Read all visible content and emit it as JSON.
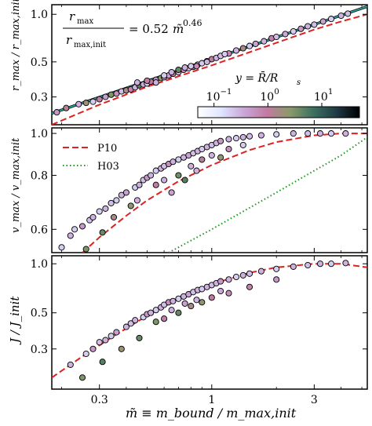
{
  "chart_data": [
    {
      "type": "scatter",
      "panel": "top",
      "ylabel": "r_max / r_max,init",
      "ylabel_text": "r",
      "xscale": "log",
      "yscale": "log",
      "xlim": [
        0.18,
        5.3
      ],
      "ylim": [
        0.2,
        1.15
      ],
      "yticks": [
        0.3,
        0.5,
        1.0
      ],
      "ytick_labels": [
        "0.3",
        "0.5",
        "1.0"
      ],
      "annotation": {
        "lhs_num": "r",
        "lhs_num_sub": "max",
        "lhs_den": "r",
        "lhs_den_sub": "max,init",
        "rhs": "= 0.52",
        "rhs_var": "m̃",
        "rhs_exp": "0.46"
      },
      "fit": {
        "name": "0.52 m̃^0.46",
        "coef": 0.52,
        "exponent": 0.46,
        "color": "#2aa198"
      },
      "series": [
        {
          "name": "P10",
          "style": "dashed",
          "color": "#dd2222",
          "x": [
            0.18,
            0.3,
            0.5,
            1.0,
            2.0,
            3.0,
            4.0,
            5.3
          ],
          "y": [
            0.2,
            0.268,
            0.348,
            0.475,
            0.66,
            0.8,
            0.9,
            1.0
          ]
        }
      ],
      "points": [
        [
          0.19,
          0.24,
          0.5
        ],
        [
          0.21,
          0.255,
          1.2
        ],
        [
          0.24,
          0.27,
          0.3
        ],
        [
          0.26,
          0.275,
          2.0
        ],
        [
          0.28,
          0.28,
          0.2
        ],
        [
          0.3,
          0.29,
          1.0
        ],
        [
          0.32,
          0.3,
          0.4
        ],
        [
          0.34,
          0.31,
          3.0
        ],
        [
          0.36,
          0.315,
          0.6
        ],
        [
          0.38,
          0.325,
          0.25
        ],
        [
          0.4,
          0.33,
          1.5
        ],
        [
          0.42,
          0.335,
          0.8
        ],
        [
          0.44,
          0.345,
          0.3
        ],
        [
          0.46,
          0.355,
          5.0
        ],
        [
          0.48,
          0.36,
          0.35
        ],
        [
          0.5,
          0.365,
          0.2
        ],
        [
          0.52,
          0.375,
          1.0
        ],
        [
          0.55,
          0.385,
          0.5
        ],
        [
          0.58,
          0.395,
          2.5
        ],
        [
          0.6,
          0.4,
          0.3
        ],
        [
          0.63,
          0.41,
          0.4
        ],
        [
          0.66,
          0.42,
          1.2
        ],
        [
          0.7,
          0.43,
          0.25
        ],
        [
          0.74,
          0.445,
          0.7
        ],
        [
          0.78,
          0.455,
          0.3
        ],
        [
          0.82,
          0.465,
          2.0
        ],
        [
          0.86,
          0.48,
          0.4
        ],
        [
          0.9,
          0.49,
          0.2
        ],
        [
          0.95,
          0.505,
          0.5
        ],
        [
          1.0,
          0.52,
          1.0
        ],
        [
          1.05,
          0.53,
          0.3
        ],
        [
          1.1,
          0.545,
          0.25
        ],
        [
          1.2,
          0.565,
          0.6
        ],
        [
          1.3,
          0.59,
          0.3
        ],
        [
          1.4,
          0.61,
          1.5
        ],
        [
          1.5,
          0.63,
          0.2
        ],
        [
          1.6,
          0.65,
          0.4
        ],
        [
          1.75,
          0.675,
          0.3
        ],
        [
          1.9,
          0.705,
          0.8
        ],
        [
          2.0,
          0.72,
          0.25
        ],
        [
          2.2,
          0.75,
          0.35
        ],
        [
          2.4,
          0.78,
          0.2
        ],
        [
          2.6,
          0.81,
          0.5
        ],
        [
          2.8,
          0.84,
          0.3
        ],
        [
          3.0,
          0.86,
          0.25
        ],
        [
          3.3,
          0.9,
          0.4
        ],
        [
          3.6,
          0.935,
          0.2
        ],
        [
          4.0,
          0.98,
          0.3
        ],
        [
          4.3,
          1.01,
          0.25
        ],
        [
          0.45,
          0.37,
          0.3
        ],
        [
          0.5,
          0.38,
          0.9
        ],
        [
          0.55,
          0.37,
          0.3
        ],
        [
          0.6,
          0.41,
          0.2
        ],
        [
          0.65,
          0.43,
          0.3
        ],
        [
          0.7,
          0.445,
          4.0
        ],
        [
          0.75,
          0.46,
          0.3
        ],
        [
          0.8,
          0.47,
          0.2
        ],
        [
          0.85,
          0.47,
          0.6
        ],
        [
          0.95,
          0.5,
          0.3
        ],
        [
          1.15,
          0.56,
          0.2
        ]
      ],
      "colorbar": {
        "label": "y = R̄/R",
        "label_sub": "s",
        "scale": "log",
        "range": [
          0.05,
          50
        ],
        "ticks": [
          0.1,
          1,
          10
        ],
        "tick_labels": [
          "10",
          "10",
          "10"
        ],
        "tick_exps": [
          "−1",
          "0",
          "1"
        ],
        "stops": [
          "#ffffff",
          "#dfe6ff",
          "#c9a6d8",
          "#c27aa0",
          "#8a9a6a",
          "#3c7060",
          "#1f3a45",
          "#000000"
        ]
      }
    },
    {
      "type": "scatter",
      "panel": "middle",
      "ylabel": "v_max / v_max,init",
      "ylabel_text": "v",
      "xscale": "log",
      "yscale": "log",
      "xlim": [
        0.18,
        5.3
      ],
      "ylim": [
        0.53,
        1.03
      ],
      "yticks": [
        0.6,
        0.8,
        1.0
      ],
      "ytick_labels": [
        "0.6",
        "0.8",
        "1.0"
      ],
      "legend": {
        "position": "upper-left",
        "entries": [
          "P10",
          "H03"
        ]
      },
      "series": [
        {
          "name": "P10",
          "style": "dashed",
          "color": "#dd2222",
          "x": [
            0.25,
            0.3,
            0.4,
            0.5,
            0.7,
            1.0,
            1.5,
            2.0,
            3.0,
            4.0,
            5.3
          ],
          "y": [
            0.53,
            0.575,
            0.645,
            0.7,
            0.775,
            0.845,
            0.915,
            0.955,
            0.99,
            1.0,
            1.0
          ]
        },
        {
          "name": "H03",
          "style": "dotted",
          "color": "#1a9a1a",
          "x": [
            0.63,
            1.0,
            2.0,
            3.0,
            4.0,
            5.3
          ],
          "y": [
            0.53,
            0.6,
            0.73,
            0.82,
            0.89,
            0.98
          ]
        }
      ],
      "points": [
        [
          0.2,
          0.545,
          0.2
        ],
        [
          0.22,
          0.58,
          0.3
        ],
        [
          0.23,
          0.6,
          0.2
        ],
        [
          0.25,
          0.61,
          0.5
        ],
        [
          0.26,
          0.54,
          3.0
        ],
        [
          0.27,
          0.63,
          0.25
        ],
        [
          0.28,
          0.64,
          0.3
        ],
        [
          0.3,
          0.66,
          0.2
        ],
        [
          0.31,
          0.59,
          4.0
        ],
        [
          0.32,
          0.67,
          0.3
        ],
        [
          0.34,
          0.69,
          0.25
        ],
        [
          0.35,
          0.64,
          1.5
        ],
        [
          0.36,
          0.7,
          0.2
        ],
        [
          0.38,
          0.72,
          0.3
        ],
        [
          0.4,
          0.73,
          0.4
        ],
        [
          0.42,
          0.68,
          2.5
        ],
        [
          0.44,
          0.75,
          0.2
        ],
        [
          0.46,
          0.76,
          0.3
        ],
        [
          0.48,
          0.78,
          0.25
        ],
        [
          0.5,
          0.79,
          0.5
        ],
        [
          0.52,
          0.8,
          0.3
        ],
        [
          0.55,
          0.82,
          0.2
        ],
        [
          0.58,
          0.83,
          0.3
        ],
        [
          0.6,
          0.84,
          0.25
        ],
        [
          0.63,
          0.85,
          0.6
        ],
        [
          0.66,
          0.86,
          0.3
        ],
        [
          0.7,
          0.87,
          0.2
        ],
        [
          0.74,
          0.88,
          0.3
        ],
        [
          0.78,
          0.89,
          0.4
        ],
        [
          0.82,
          0.9,
          0.25
        ],
        [
          0.86,
          0.91,
          0.3
        ],
        [
          0.9,
          0.92,
          0.2
        ],
        [
          0.95,
          0.93,
          0.3
        ],
        [
          1.0,
          0.94,
          0.25
        ],
        [
          1.05,
          0.95,
          0.3
        ],
        [
          1.1,
          0.96,
          0.5
        ],
        [
          1.2,
          0.97,
          0.3
        ],
        [
          1.3,
          0.975,
          0.2
        ],
        [
          1.4,
          0.98,
          0.3
        ],
        [
          1.5,
          0.985,
          0.25
        ],
        [
          1.7,
          0.99,
          0.3
        ],
        [
          2.0,
          0.995,
          0.2
        ],
        [
          2.4,
          1.0,
          0.3
        ],
        [
          2.8,
          1.0,
          0.25
        ],
        [
          3.2,
          1.0,
          0.3
        ],
        [
          3.6,
          1.0,
          0.2
        ],
        [
          4.2,
          1.0,
          0.3
        ],
        [
          0.45,
          0.7,
          0.3
        ],
        [
          0.55,
          0.76,
          0.9
        ],
        [
          0.6,
          0.78,
          0.3
        ],
        [
          0.7,
          0.8,
          3.5
        ],
        [
          0.8,
          0.84,
          0.3
        ],
        [
          0.9,
          0.87,
          1.2
        ],
        [
          1.0,
          0.89,
          0.3
        ],
        [
          1.2,
          0.92,
          0.6
        ],
        [
          1.4,
          0.94,
          0.2
        ],
        [
          0.65,
          0.73,
          0.4
        ],
        [
          0.75,
          0.78,
          5.0
        ],
        [
          0.85,
          0.82,
          0.3
        ],
        [
          1.1,
          0.88,
          2.0
        ]
      ]
    },
    {
      "type": "scatter",
      "panel": "bottom",
      "ylabel": "J / J_init",
      "ylabel_text": "J",
      "xlabel": "m̃ ≡ m_bound / m_max,init",
      "xscale": "log",
      "yscale": "log",
      "xlim": [
        0.18,
        5.3
      ],
      "ylim": [
        0.17,
        1.12
      ],
      "xticks": [
        0.3,
        1,
        3
      ],
      "xtick_labels": [
        "0.3",
        "1",
        "3"
      ],
      "yticks": [
        0.3,
        0.5,
        1.0
      ],
      "ytick_labels": [
        "0.3",
        "0.5",
        "1.0"
      ],
      "series": [
        {
          "name": "P10",
          "style": "dashed",
          "color": "#dd2222",
          "x": [
            0.18,
            0.25,
            0.35,
            0.5,
            0.7,
            1.0,
            1.5,
            2.0,
            3.0,
            4.0,
            5.3
          ],
          "y": [
            0.2,
            0.27,
            0.36,
            0.48,
            0.61,
            0.75,
            0.88,
            0.95,
            1.0,
            1.0,
            0.95
          ]
        }
      ],
      "points": [
        [
          0.22,
          0.24,
          0.3
        ],
        [
          0.25,
          0.2,
          3.0
        ],
        [
          0.26,
          0.28,
          0.2
        ],
        [
          0.28,
          0.3,
          0.5
        ],
        [
          0.3,
          0.33,
          0.25
        ],
        [
          0.31,
          0.25,
          5.0
        ],
        [
          0.32,
          0.34,
          0.3
        ],
        [
          0.34,
          0.36,
          0.2
        ],
        [
          0.36,
          0.38,
          0.4
        ],
        [
          0.38,
          0.3,
          2.0
        ],
        [
          0.4,
          0.41,
          0.3
        ],
        [
          0.42,
          0.43,
          0.25
        ],
        [
          0.44,
          0.45,
          0.3
        ],
        [
          0.46,
          0.35,
          4.0
        ],
        [
          0.48,
          0.47,
          0.2
        ],
        [
          0.5,
          0.49,
          0.5
        ],
        [
          0.52,
          0.5,
          0.3
        ],
        [
          0.55,
          0.52,
          0.2
        ],
        [
          0.58,
          0.54,
          0.3
        ],
        [
          0.6,
          0.56,
          0.25
        ],
        [
          0.63,
          0.58,
          0.6
        ],
        [
          0.66,
          0.59,
          0.3
        ],
        [
          0.7,
          0.61,
          0.2
        ],
        [
          0.74,
          0.63,
          0.3
        ],
        [
          0.78,
          0.65,
          0.4
        ],
        [
          0.82,
          0.67,
          0.25
        ],
        [
          0.86,
          0.69,
          0.3
        ],
        [
          0.9,
          0.7,
          0.2
        ],
        [
          0.95,
          0.72,
          0.3
        ],
        [
          1.0,
          0.74,
          0.25
        ],
        [
          1.05,
          0.76,
          0.3
        ],
        [
          1.1,
          0.78,
          0.5
        ],
        [
          1.2,
          0.8,
          0.3
        ],
        [
          1.3,
          0.83,
          0.2
        ],
        [
          1.4,
          0.85,
          0.3
        ],
        [
          1.5,
          0.87,
          0.25
        ],
        [
          1.7,
          0.9,
          0.3
        ],
        [
          2.0,
          0.93,
          0.2
        ],
        [
          2.4,
          0.96,
          0.3
        ],
        [
          2.8,
          0.98,
          0.25
        ],
        [
          3.2,
          1.0,
          0.3
        ],
        [
          3.6,
          1.0,
          0.2
        ],
        [
          4.2,
          1.01,
          0.3
        ],
        [
          0.55,
          0.44,
          3.0
        ],
        [
          0.6,
          0.46,
          0.9
        ],
        [
          0.7,
          0.5,
          4.0
        ],
        [
          0.8,
          0.55,
          1.5
        ],
        [
          0.9,
          0.58,
          2.5
        ],
        [
          1.0,
          0.62,
          1.0
        ],
        [
          1.2,
          0.66,
          0.6
        ],
        [
          1.5,
          0.72,
          0.8
        ],
        [
          2.0,
          0.8,
          0.5
        ],
        [
          0.65,
          0.52,
          0.3
        ],
        [
          0.75,
          0.57,
          0.4
        ],
        [
          0.85,
          0.6,
          0.3
        ],
        [
          1.1,
          0.68,
          0.35
        ]
      ]
    }
  ]
}
